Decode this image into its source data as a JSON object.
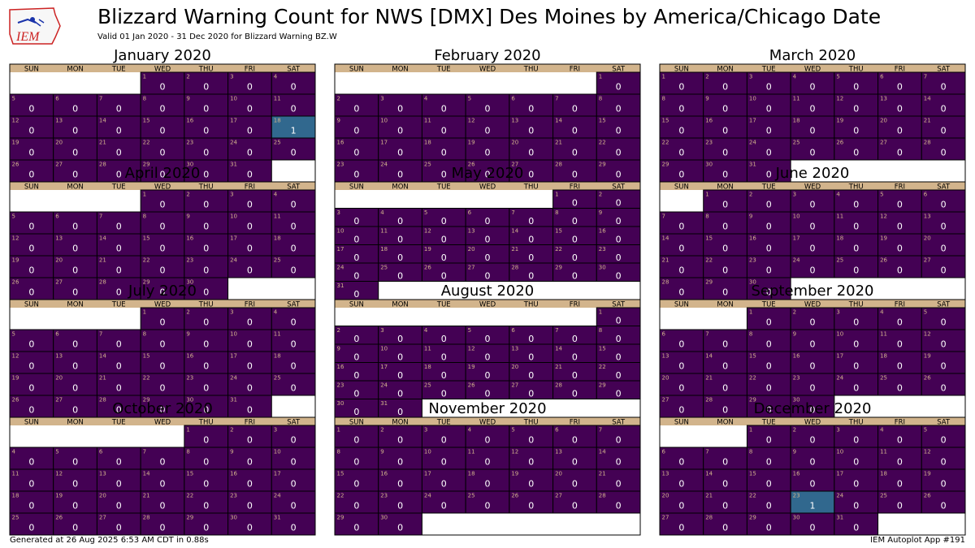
{
  "header": {
    "title": "Blizzard Warning Count for NWS [DMX] Des Moines by America/Chicago Date",
    "subtitle": "Valid 01 Jan 2020 - 31 Dec 2020 for Blizzard Warning BZ.W",
    "logo_text": "IEM"
  },
  "footer": {
    "generated": "Generated at 26 Aug 2025 6:53 AM CDT in 0.88s",
    "app": "IEM Autoplot App #191"
  },
  "colors": {
    "zero": "#440154",
    "one": "#31688e",
    "header_band": "#d2b48c",
    "day_number": "#d2b48c",
    "count_text": "#ffffff"
  },
  "chart_data": {
    "type": "heatmap",
    "year": 2020,
    "weekdays": [
      "SUN",
      "MON",
      "TUE",
      "WED",
      "THU",
      "FRI",
      "SAT"
    ],
    "months": [
      {
        "name": "January 2020",
        "first_weekday": 3,
        "days": 31
      },
      {
        "name": "February 2020",
        "first_weekday": 6,
        "days": 29
      },
      {
        "name": "March 2020",
        "first_weekday": 0,
        "days": 31
      },
      {
        "name": "April 2020",
        "first_weekday": 3,
        "days": 30
      },
      {
        "name": "May 2020",
        "first_weekday": 5,
        "days": 31
      },
      {
        "name": "June 2020",
        "first_weekday": 1,
        "days": 30
      },
      {
        "name": "July 2020",
        "first_weekday": 3,
        "days": 31
      },
      {
        "name": "August 2020",
        "first_weekday": 6,
        "days": 31
      },
      {
        "name": "September 2020",
        "first_weekday": 2,
        "days": 30
      },
      {
        "name": "October 2020",
        "first_weekday": 4,
        "days": 31
      },
      {
        "name": "November 2020",
        "first_weekday": 0,
        "days": 30
      },
      {
        "name": "December 2020",
        "first_weekday": 2,
        "days": 31
      }
    ],
    "default_count": 0,
    "nonzero_counts": [
      {
        "month": 1,
        "day": 18,
        "count": 1
      },
      {
        "month": 12,
        "day": 23,
        "count": 1
      }
    ]
  }
}
